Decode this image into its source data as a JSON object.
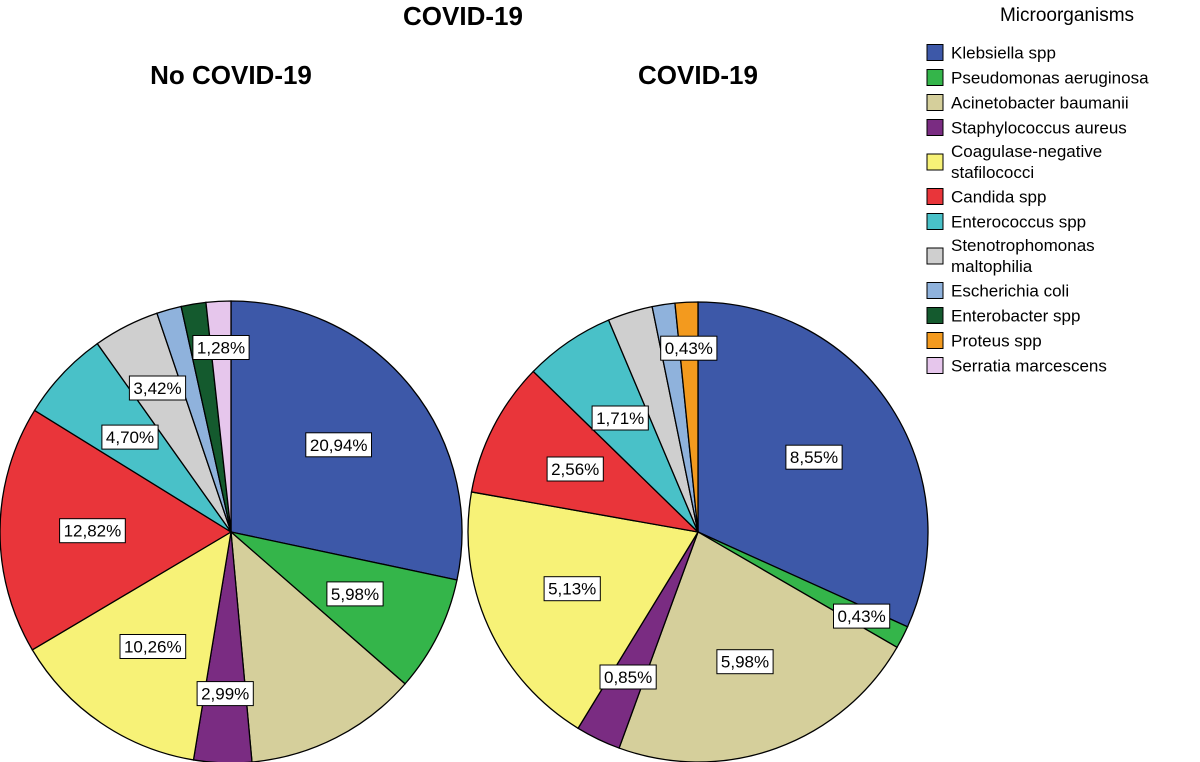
{
  "chart_data": {
    "type": "pie",
    "title": "COVID-19",
    "legend": {
      "title": "Microorganisms",
      "placement": "right",
      "entries": [
        {
          "label_lines": [
            "Klebsiella spp"
          ],
          "color": "#3d58a8"
        },
        {
          "label_lines": [
            "Pseudomonas aeruginosa"
          ],
          "color": "#34b54a"
        },
        {
          "label_lines": [
            "Acinetobacter baumanii"
          ],
          "color": "#d5cf9b"
        },
        {
          "label_lines": [
            "Staphylococcus aureus"
          ],
          "color": "#7a2c82"
        },
        {
          "label_lines": [
            "Coagulase-negative",
            "stafilococci"
          ],
          "color": "#f7f277"
        },
        {
          "label_lines": [
            "Candida spp"
          ],
          "color": "#e9353a"
        },
        {
          "label_lines": [
            "Enterococcus spp"
          ],
          "color": "#49c1c8"
        },
        {
          "label_lines": [
            "Stenotrophomonas",
            "maltophilia"
          ],
          "color": "#cfcfcf"
        },
        {
          "label_lines": [
            "Escherichia coli"
          ],
          "color": "#8fb2dc"
        },
        {
          "label_lines": [
            "Enterobacter spp"
          ],
          "color": "#145a2e"
        },
        {
          "label_lines": [
            "Proteus spp"
          ],
          "color": "#f39a1e"
        },
        {
          "label_lines": [
            "Serratia marcescens"
          ],
          "color": "#e6c6ec"
        }
      ]
    },
    "pies": [
      {
        "title": "No COVID-19",
        "slices": [
          {
            "category": "Klebsiella spp",
            "value": 20.94,
            "label": "20,94%"
          },
          {
            "category": "Pseudomonas aeruginosa",
            "value": 5.98,
            "label": "5,98%"
          },
          {
            "category": "Acinetobacter baumanii",
            "value": 8.97,
            "label": null
          },
          {
            "category": "Staphylococcus aureus",
            "value": 2.99,
            "label": "2,99%"
          },
          {
            "category": "Coagulase-negative stafilococci",
            "value": 10.26,
            "label": "10,26%"
          },
          {
            "category": "Candida spp",
            "value": 12.82,
            "label": "12,82%"
          },
          {
            "category": "Enterococcus spp",
            "value": 4.7,
            "label": "4,70%"
          },
          {
            "category": "Stenotrophomonas maltophilia",
            "value": 3.42,
            "label": "3,42%"
          },
          {
            "category": "Escherichia coli",
            "value": 1.28,
            "label": null
          },
          {
            "category": "Enterobacter spp",
            "value": 1.28,
            "label": null
          },
          {
            "category": "Serratia marcescens",
            "value": 1.28,
            "label": "1,28%"
          }
        ]
      },
      {
        "title": "COVID-19",
        "slices": [
          {
            "category": "Klebsiella spp",
            "value": 8.55,
            "label": "8,55%"
          },
          {
            "category": "Pseudomonas aeruginosa",
            "value": 0.43,
            "label": "0,43%"
          },
          {
            "category": "Acinetobacter baumanii",
            "value": 5.98,
            "label": "5,98%"
          },
          {
            "category": "Staphylococcus aureus",
            "value": 0.85,
            "label": "0,85%"
          },
          {
            "category": "Coagulase-negative stafilococci",
            "value": 5.13,
            "label": "5,13%"
          },
          {
            "category": "Candida spp",
            "value": 2.56,
            "label": "2,56%"
          },
          {
            "category": "Enterococcus spp",
            "value": 1.71,
            "label": "1,71%"
          },
          {
            "category": "Stenotrophomonas maltophilia",
            "value": 0.85,
            "label": null
          },
          {
            "category": "Escherichia coli",
            "value": 0.43,
            "label": null
          },
          {
            "category": "Proteus spp",
            "value": 0.43,
            "label": "0,43%"
          }
        ]
      }
    ]
  }
}
